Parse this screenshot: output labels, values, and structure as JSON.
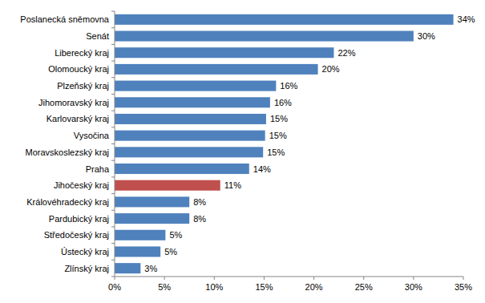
{
  "chart_data": {
    "type": "bar",
    "orientation": "horizontal",
    "data_labels": true,
    "grid": false,
    "categories": [
      "Poslanecká sněmovna",
      "Senát",
      "Liberecký kraj",
      "Olomoucký kraj",
      "Plzeňský kraj",
      "Jihomoravský kraj",
      "Karlovarský kraj",
      "Vysočina",
      "Moravskoslezský kraj",
      "Praha",
      "Jihočeský kraj",
      "Královéhradecký kraj",
      "Pardubický kraj",
      "Středočeský kraj",
      "Ústecký kraj",
      "Zlínský kraj"
    ],
    "values": [
      34.0,
      30.0,
      22.0,
      20.4,
      16.2,
      15.6,
      15.2,
      15.1,
      14.9,
      13.5,
      10.6,
      7.5,
      7.5,
      5.1,
      4.6,
      2.6
    ],
    "value_labels": [
      "34%",
      "30%",
      "22%",
      "20%",
      "16%",
      "16%",
      "15%",
      "15%",
      "15%",
      "14%",
      "11%",
      "8%",
      "8%",
      "5%",
      "5%",
      "3%"
    ],
    "colors": [
      "#4f81bd",
      "#4f81bd",
      "#4f81bd",
      "#4f81bd",
      "#4f81bd",
      "#4f81bd",
      "#4f81bd",
      "#4f81bd",
      "#4f81bd",
      "#4f81bd",
      "#c0504d",
      "#4f81bd",
      "#4f81bd",
      "#4f81bd",
      "#4f81bd",
      "#4f81bd"
    ],
    "xlim": [
      0,
      35
    ],
    "xticks": [
      {
        "value": 0,
        "label": "0%"
      },
      {
        "value": 5,
        "label": "5%"
      },
      {
        "value": 10,
        "label": "10%"
      },
      {
        "value": 15,
        "label": "15%"
      },
      {
        "value": 20,
        "label": "20%"
      },
      {
        "value": 25,
        "label": "25%"
      },
      {
        "value": 30,
        "label": "30%"
      },
      {
        "value": 35,
        "label": "35%"
      }
    ]
  }
}
